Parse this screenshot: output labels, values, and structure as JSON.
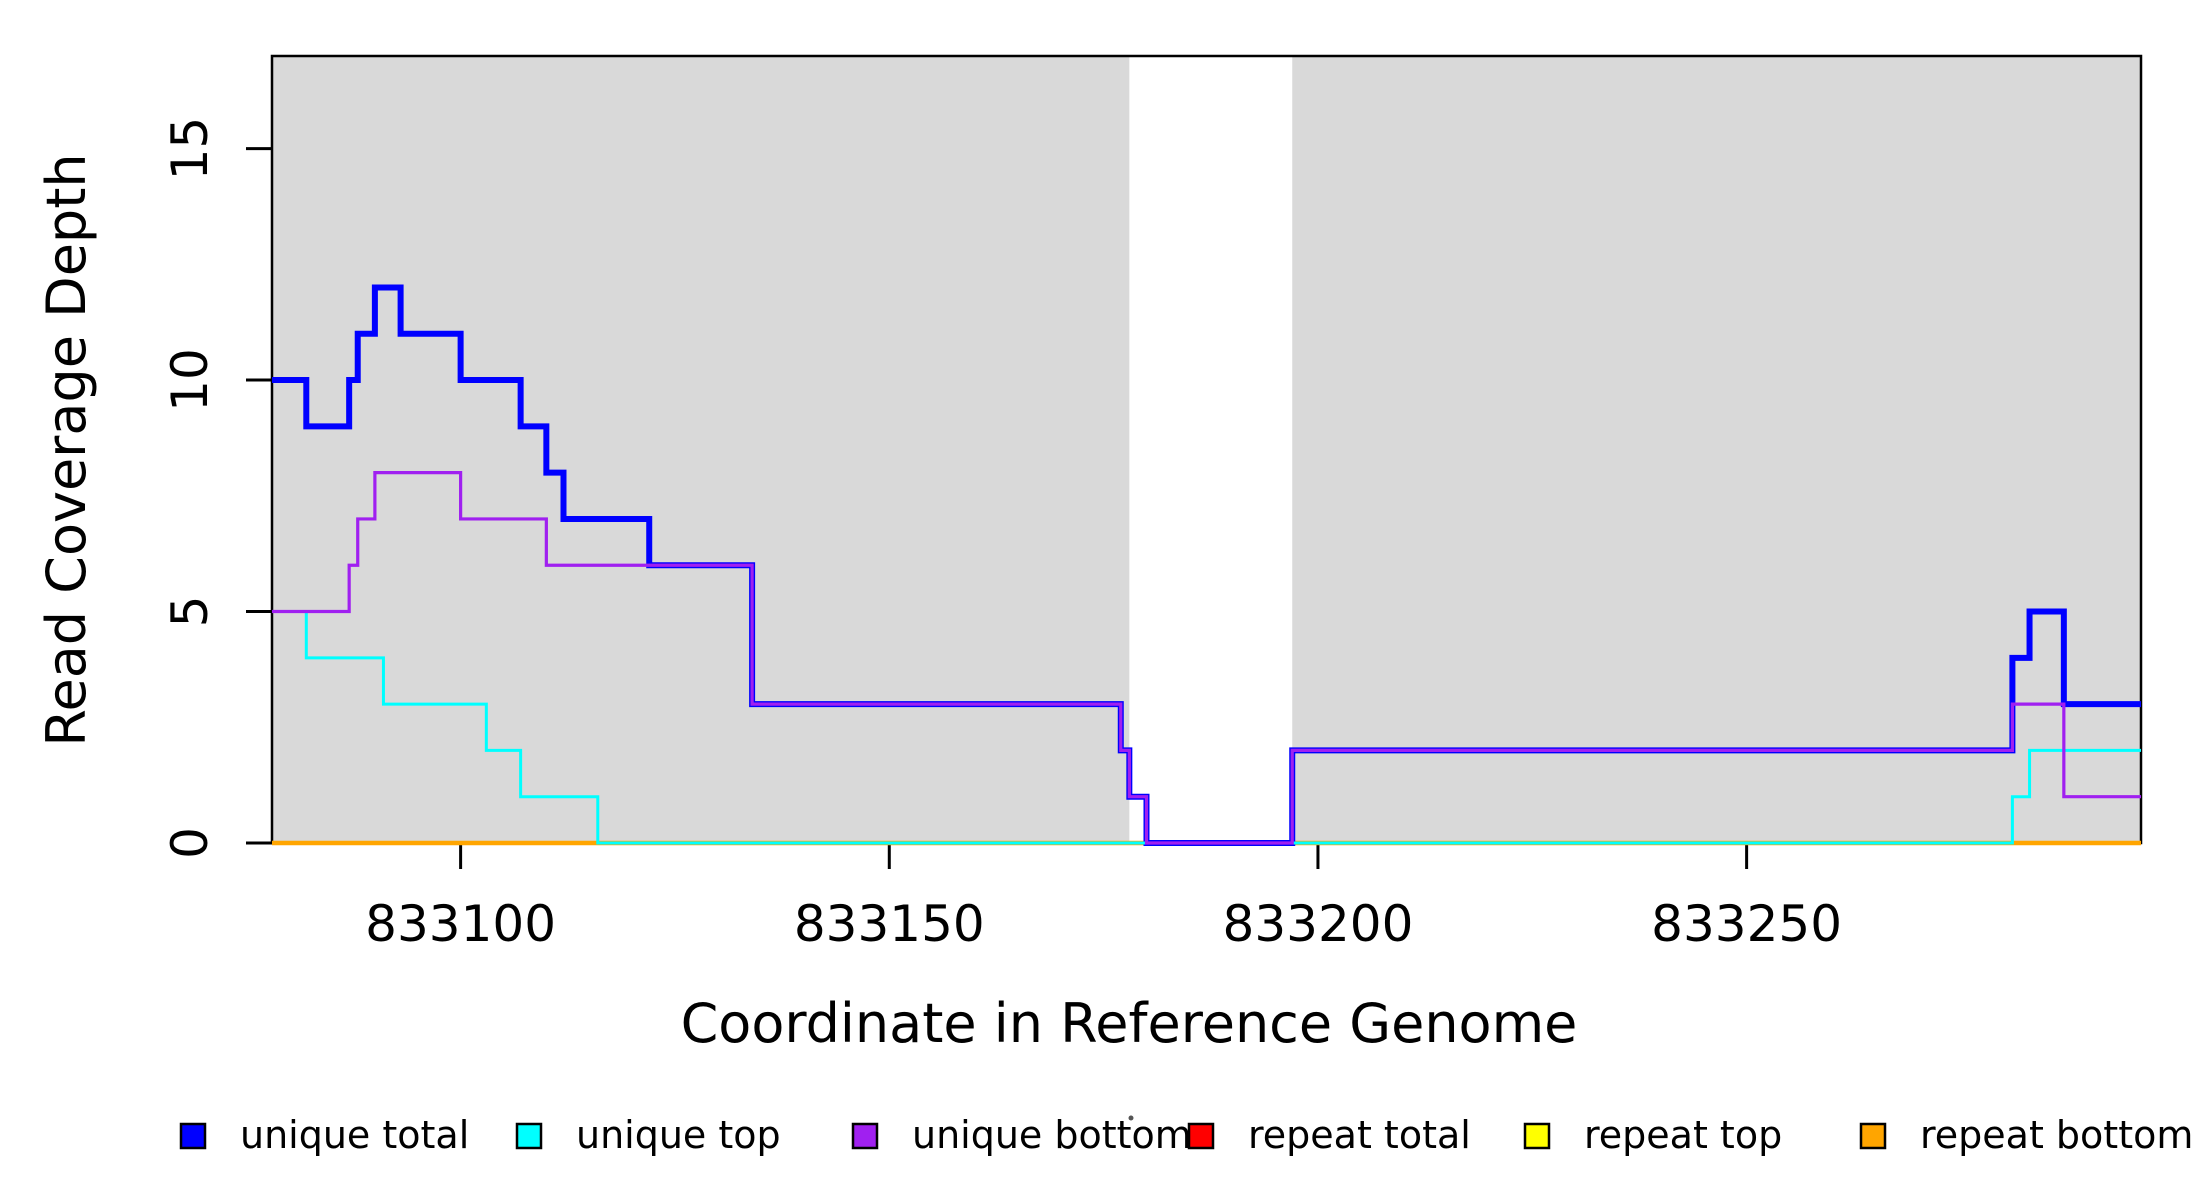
{
  "chart_data": {
    "type": "line",
    "subtype": "step-coverage",
    "title": "",
    "xlabel": "Coordinate in Reference Genome",
    "ylabel": "Read Coverage Depth",
    "xlim": [
      833078,
      833296
    ],
    "ylim": [
      0,
      17
    ],
    "x_ticks": [
      833100,
      833150,
      833200,
      833250
    ],
    "y_ticks": [
      0,
      5,
      10,
      15
    ],
    "grid": false,
    "panel_background": "#ffffff",
    "masked_region_color": "#d9d9d9",
    "masked_regions": [
      {
        "start": 833078,
        "end": 833178
      },
      {
        "start": 833197,
        "end": 833296
      }
    ],
    "series": [
      {
        "name": "unique total",
        "color": "#0000ff",
        "width": 6,
        "points": [
          [
            833078,
            10
          ],
          [
            833082,
            9
          ],
          [
            833087,
            10
          ],
          [
            833088,
            11
          ],
          [
            833090,
            12
          ],
          [
            833093,
            11
          ],
          [
            833100,
            10
          ],
          [
            833107,
            9
          ],
          [
            833110,
            8
          ],
          [
            833112,
            7
          ],
          [
            833122,
            6
          ],
          [
            833134,
            3
          ],
          [
            833177,
            2
          ],
          [
            833178,
            1
          ],
          [
            833180,
            0
          ],
          [
            833197,
            2
          ],
          [
            833281,
            4
          ],
          [
            833283,
            5
          ],
          [
            833287,
            3
          ],
          [
            833296,
            3
          ]
        ]
      },
      {
        "name": "unique top",
        "color": "#00ffff",
        "width": 3,
        "points": [
          [
            833078,
            5
          ],
          [
            833082,
            4
          ],
          [
            833091,
            3
          ],
          [
            833103,
            2
          ],
          [
            833107,
            1
          ],
          [
            833116,
            0
          ],
          [
            833281,
            1
          ],
          [
            833283,
            2
          ],
          [
            833296,
            2
          ]
        ]
      },
      {
        "name": "unique bottom",
        "color": "#a020f0",
        "width": 3.2,
        "points": [
          [
            833078,
            5
          ],
          [
            833087,
            6
          ],
          [
            833088,
            7
          ],
          [
            833090,
            8
          ],
          [
            833100,
            7
          ],
          [
            833110,
            6
          ],
          [
            833134,
            3
          ],
          [
            833177,
            2
          ],
          [
            833178,
            1
          ],
          [
            833180,
            0
          ],
          [
            833197,
            2
          ],
          [
            833281,
            3
          ],
          [
            833287,
            1
          ],
          [
            833296,
            1
          ]
        ]
      },
      {
        "name": "repeat total",
        "color": "#ff0000",
        "width": 3,
        "points": [
          [
            833078,
            0
          ],
          [
            833296,
            0
          ]
        ]
      },
      {
        "name": "repeat top",
        "color": "#ffff00",
        "width": 3,
        "points": [
          [
            833078,
            0
          ],
          [
            833296,
            0
          ]
        ]
      },
      {
        "name": "repeat bottom",
        "color": "#ffa500",
        "width": 4.5,
        "points": [
          [
            833078,
            0
          ],
          [
            833296,
            0
          ]
        ]
      }
    ],
    "draw_order": [
      "repeat total",
      "repeat top",
      "repeat bottom",
      "unique total",
      "unique top",
      "unique bottom"
    ],
    "legend": {
      "position": "bottom",
      "items": [
        {
          "label": "unique total",
          "color": "#0000ff"
        },
        {
          "label": "unique top",
          "color": "#00ffff"
        },
        {
          "label": "unique bottom",
          "color": "#a020f0"
        },
        {
          "label": "repeat total",
          "color": "#ff0000"
        },
        {
          "label": "repeat top",
          "color": "#ffff00"
        },
        {
          "label": "repeat bottom",
          "color": "#ffa500"
        }
      ]
    }
  }
}
